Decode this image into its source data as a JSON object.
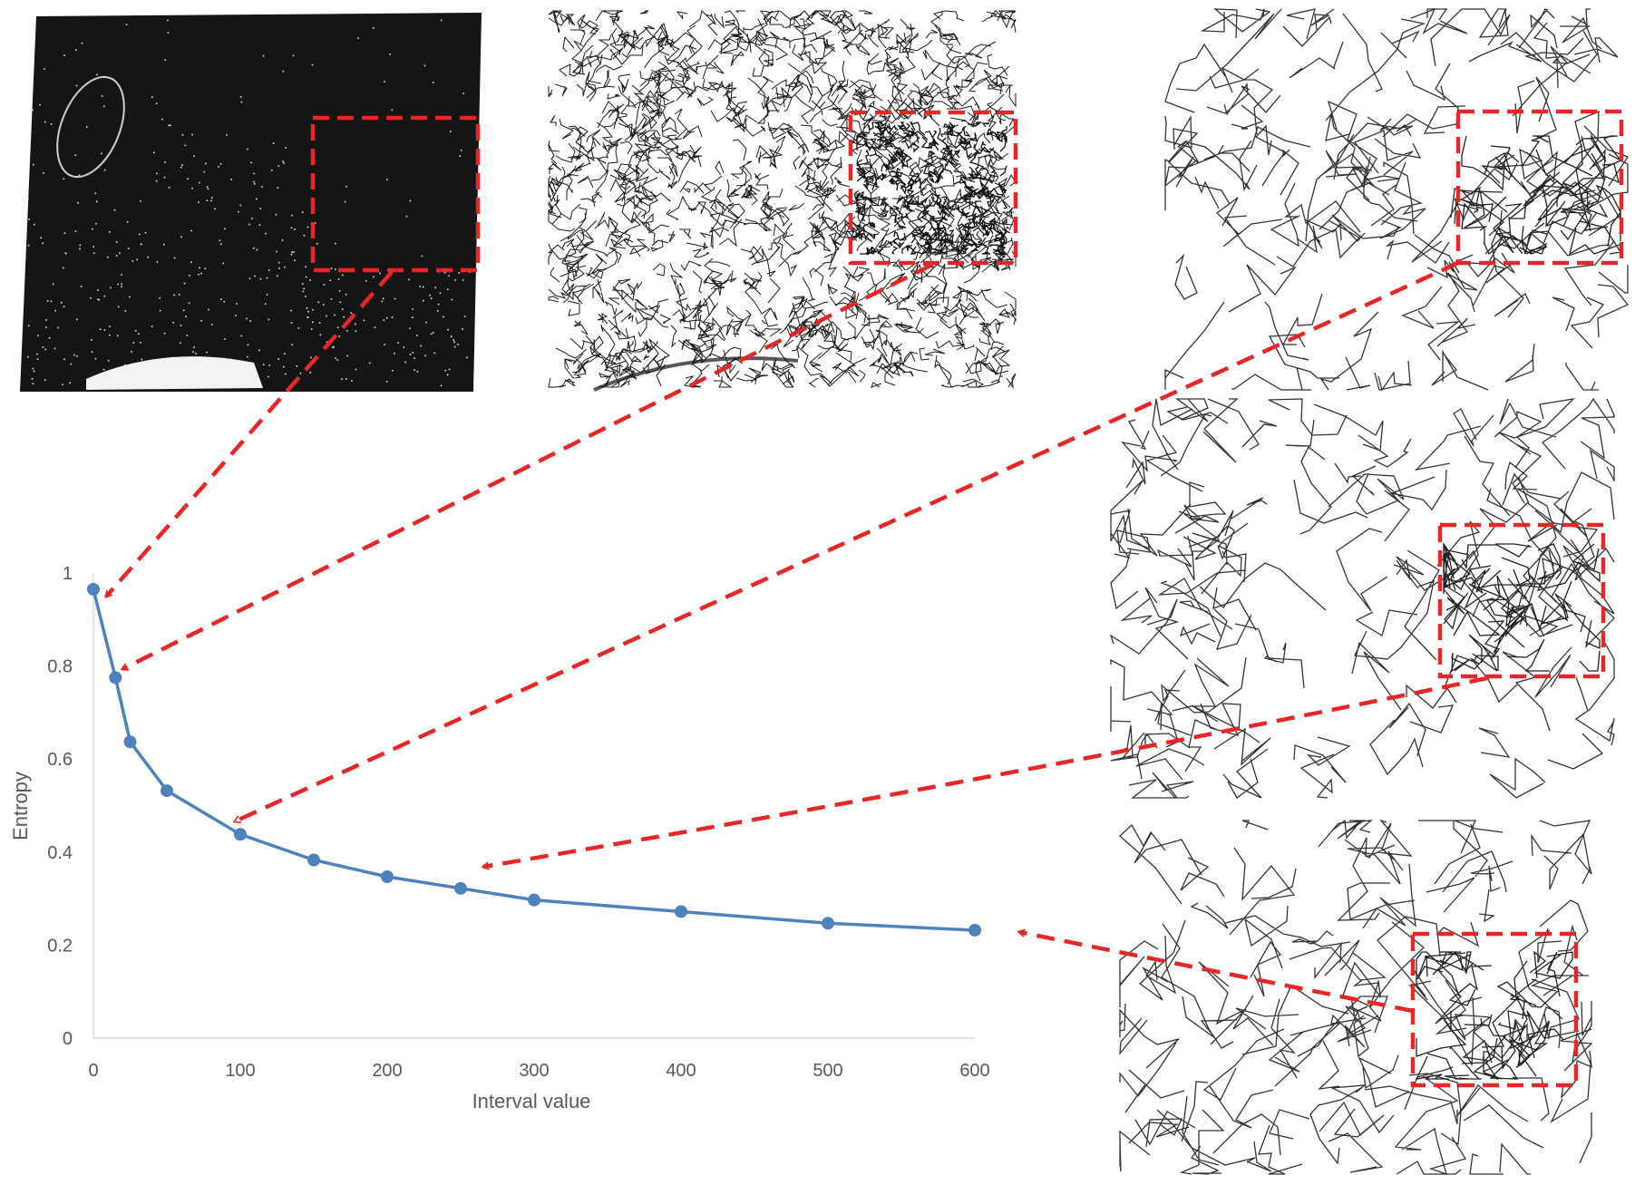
{
  "chart_data": {
    "type": "line",
    "title": "",
    "xlabel": "Interval value",
    "ylabel": "Entropy",
    "xlim": [
      0,
      600
    ],
    "ylim": [
      0,
      1
    ],
    "x_ticks": [
      "0",
      "100",
      "200",
      "300",
      "400",
      "500",
      "600"
    ],
    "y_ticks": [
      "0",
      "0.2",
      "0.4",
      "0.6",
      "0.8",
      "1"
    ],
    "grid": false,
    "series": [
      {
        "color": "#4f81bd",
        "x": [
          0,
          15,
          25,
          50,
          100,
          150,
          200,
          250,
          300,
          400,
          500,
          600
        ],
        "y": [
          0.965,
          0.775,
          0.637,
          0.532,
          0.438,
          0.383,
          0.347,
          0.322,
          0.297,
          0.272,
          0.247,
          0.232
        ]
      }
    ]
  },
  "annotation_color": "#e8262a",
  "panels": [
    {
      "name": "dense-point-cloud-panel",
      "style": "dense"
    },
    {
      "name": "medium-trajectory-panel",
      "style": "medium"
    },
    {
      "name": "sparse-trajectory-panel-1",
      "style": "sparse"
    },
    {
      "name": "sparse-trajectory-panel-2",
      "style": "sparse"
    },
    {
      "name": "sparse-trajectory-panel-3",
      "style": "sparse"
    }
  ]
}
